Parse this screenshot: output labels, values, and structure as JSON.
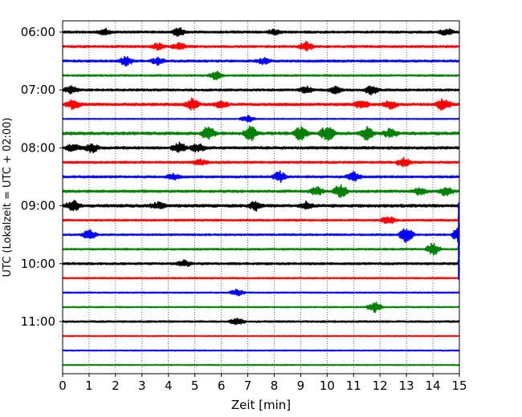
{
  "chart_data": {
    "type": "line",
    "title": "",
    "xlabel": "Zeit  [min]",
    "ylabel": "UTC (Lokalzeit = UTC + 02:00)",
    "xlim": [
      0,
      15
    ],
    "x_ticks": [
      "0",
      "1",
      "2",
      "3",
      "4",
      "5",
      "6",
      "7",
      "8",
      "9",
      "10",
      "11",
      "12",
      "13",
      "14",
      "15"
    ],
    "y_ticks": [
      "06:00",
      "07:00",
      "08:00",
      "09:00",
      "10:00",
      "11:00"
    ],
    "grid_x": true,
    "trace_interval_minutes": 15,
    "first_trace": "06:00",
    "colors_cycle": [
      "#000000",
      "#ff0000",
      "#0000ff",
      "#008000"
    ],
    "series": [
      {
        "start": "06:00",
        "color": "#000000",
        "amplitude": 1.0,
        "events": [
          {
            "t": 4.4,
            "a": 2.5
          },
          {
            "t": 14.5,
            "a": 2.0
          },
          {
            "t": 1.6,
            "a": 1.8
          },
          {
            "t": 8.0,
            "a": 1.5
          }
        ]
      },
      {
        "start": "06:15",
        "color": "#ff0000",
        "amplitude": 1.0,
        "events": [
          {
            "t": 9.2,
            "a": 2.5
          },
          {
            "t": 4.4,
            "a": 2.0
          },
          {
            "t": 3.6,
            "a": 1.8
          }
        ]
      },
      {
        "start": "06:30",
        "color": "#0000ff",
        "amplitude": 1.0,
        "events": [
          {
            "t": 2.4,
            "a": 2.5
          },
          {
            "t": 3.6,
            "a": 2.0
          },
          {
            "t": 7.6,
            "a": 1.5
          }
        ]
      },
      {
        "start": "06:45",
        "color": "#008000",
        "amplitude": 0.8,
        "events": [
          {
            "t": 5.8,
            "a": 2.5
          }
        ]
      },
      {
        "start": "07:00",
        "color": "#000000",
        "amplitude": 1.0,
        "events": [
          {
            "t": 11.7,
            "a": 2.8
          },
          {
            "t": 0.3,
            "a": 2.0
          },
          {
            "t": 9.2,
            "a": 1.8
          },
          {
            "t": 10.3,
            "a": 1.8
          }
        ]
      },
      {
        "start": "07:15",
        "color": "#ff0000",
        "amplitude": 1.2,
        "events": [
          {
            "t": 14.4,
            "a": 3.5
          },
          {
            "t": 4.9,
            "a": 3.0
          },
          {
            "t": 0.4,
            "a": 2.5
          },
          {
            "t": 11.3,
            "a": 2.5
          },
          {
            "t": 12.4,
            "a": 2.2
          },
          {
            "t": 6.0,
            "a": 2.0
          }
        ]
      },
      {
        "start": "07:30",
        "color": "#0000ff",
        "amplitude": 0.5,
        "events": [
          {
            "t": 7.0,
            "a": 2.0
          }
        ]
      },
      {
        "start": "07:45",
        "color": "#008000",
        "amplitude": 1.3,
        "events": [
          {
            "t": 5.5,
            "a": 4.0
          },
          {
            "t": 7.1,
            "a": 4.0
          },
          {
            "t": 9.0,
            "a": 4.0
          },
          {
            "t": 10.0,
            "a": 4.5
          },
          {
            "t": 11.5,
            "a": 3.5
          },
          {
            "t": 12.4,
            "a": 2.5
          }
        ]
      },
      {
        "start": "08:00",
        "color": "#000000",
        "amplitude": 1.2,
        "events": [
          {
            "t": 4.4,
            "a": 3.0
          },
          {
            "t": 1.1,
            "a": 2.5
          },
          {
            "t": 5.1,
            "a": 2.5
          },
          {
            "t": 0.4,
            "a": 2.0
          }
        ]
      },
      {
        "start": "08:15",
        "color": "#ff0000",
        "amplitude": 1.0,
        "events": [
          {
            "t": 12.9,
            "a": 2.5
          },
          {
            "t": 5.2,
            "a": 1.5
          }
        ]
      },
      {
        "start": "08:30",
        "color": "#0000ff",
        "amplitude": 1.0,
        "events": [
          {
            "t": 8.2,
            "a": 3.0
          },
          {
            "t": 11.0,
            "a": 2.5
          },
          {
            "t": 4.2,
            "a": 1.5
          }
        ]
      },
      {
        "start": "08:45",
        "color": "#008000",
        "amplitude": 1.1,
        "events": [
          {
            "t": 10.5,
            "a": 4.0
          },
          {
            "t": 9.6,
            "a": 2.5
          },
          {
            "t": 14.5,
            "a": 2.5
          },
          {
            "t": 13.5,
            "a": 2.0
          }
        ]
      },
      {
        "start": "09:00",
        "color": "#000000",
        "amplitude": 1.3,
        "events": [
          {
            "t": 0.4,
            "a": 3.0
          },
          {
            "t": 7.3,
            "a": 2.5
          },
          {
            "t": 9.2,
            "a": 2.0
          },
          {
            "t": 3.6,
            "a": 1.8
          }
        ]
      },
      {
        "start": "09:15",
        "color": "#ff0000",
        "amplitude": 0.9,
        "events": [
          {
            "t": 12.3,
            "a": 2.5
          }
        ]
      },
      {
        "start": "09:30",
        "color": "#0000ff",
        "amplitude": 0.8,
        "events": [
          {
            "t": 13.0,
            "a": 4.5
          },
          {
            "t": 1.0,
            "a": 3.0
          },
          {
            "t": 15.0,
            "a": 5.0
          }
        ]
      },
      {
        "start": "09:45",
        "color": "#008000",
        "amplitude": 0.8,
        "events": [
          {
            "t": 14.0,
            "a": 3.5
          }
        ]
      },
      {
        "start": "10:00",
        "color": "#000000",
        "amplitude": 1.0,
        "events": [
          {
            "t": 4.6,
            "a": 1.8
          }
        ]
      },
      {
        "start": "10:15",
        "color": "#ff0000",
        "amplitude": 0.7,
        "events": []
      },
      {
        "start": "10:30",
        "color": "#0000ff",
        "amplitude": 0.6,
        "events": [
          {
            "t": 6.6,
            "a": 2.0
          }
        ]
      },
      {
        "start": "10:45",
        "color": "#008000",
        "amplitude": 0.6,
        "events": [
          {
            "t": 11.8,
            "a": 3.0
          }
        ]
      },
      {
        "start": "11:00",
        "color": "#000000",
        "amplitude": 0.8,
        "events": [
          {
            "t": 6.6,
            "a": 2.0
          }
        ]
      },
      {
        "start": "11:15",
        "color": "#ff0000",
        "amplitude": 0.5,
        "events": []
      },
      {
        "start": "11:30",
        "color": "#0000ff",
        "amplitude": 0.5,
        "events": []
      },
      {
        "start": "11:45",
        "color": "#008000",
        "amplitude": 0.5,
        "events": []
      }
    ]
  }
}
